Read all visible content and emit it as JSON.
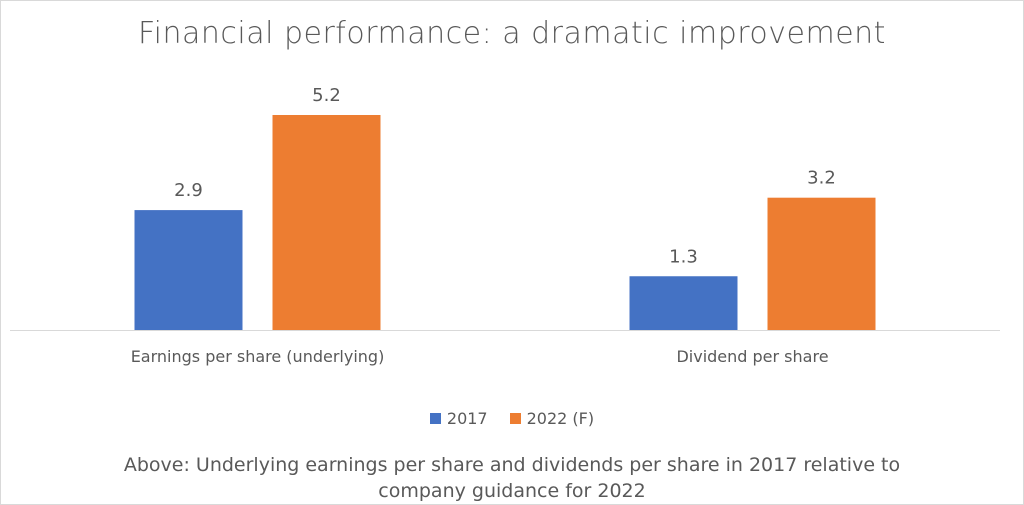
{
  "title": "Financial performance: a dramatic improvement",
  "caption": {
    "line1": "Above: Underlying earnings per share  and dividends per share in 2017 relative to",
    "line2": "company guidance for 2022"
  },
  "colors": {
    "2017": "#4472c4",
    "2022": "#ed7d31",
    "axis": "#d9d9d9",
    "text": "#595959"
  },
  "chart_data": {
    "type": "bar",
    "title": "Financial performance: a dramatic improvement",
    "categories": [
      "Earnings per share (underlying)",
      "Dividend per share"
    ],
    "series": [
      {
        "name": "2017",
        "values": [
          2.9,
          1.3
        ]
      },
      {
        "name": "2022 (F)",
        "values": [
          5.2,
          3.2
        ]
      }
    ],
    "ylim": [
      0,
      5.2
    ],
    "grid": false,
    "legend": "bottom",
    "data_labels": true
  }
}
